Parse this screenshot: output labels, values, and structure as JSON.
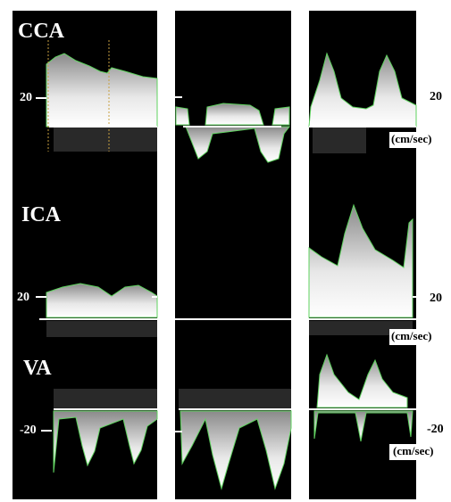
{
  "rows": [
    {
      "label": "CCA",
      "left_scale": "20",
      "right_scale": "20",
      "unit": "(cm/sec)"
    },
    {
      "label": "ICA",
      "left_scale": "20",
      "right_scale": "20",
      "unit": "(cm/sec)"
    },
    {
      "label": "VA",
      "left_scale": "-20",
      "right_scale": "-20",
      "unit": "(cm/sec)"
    }
  ]
}
